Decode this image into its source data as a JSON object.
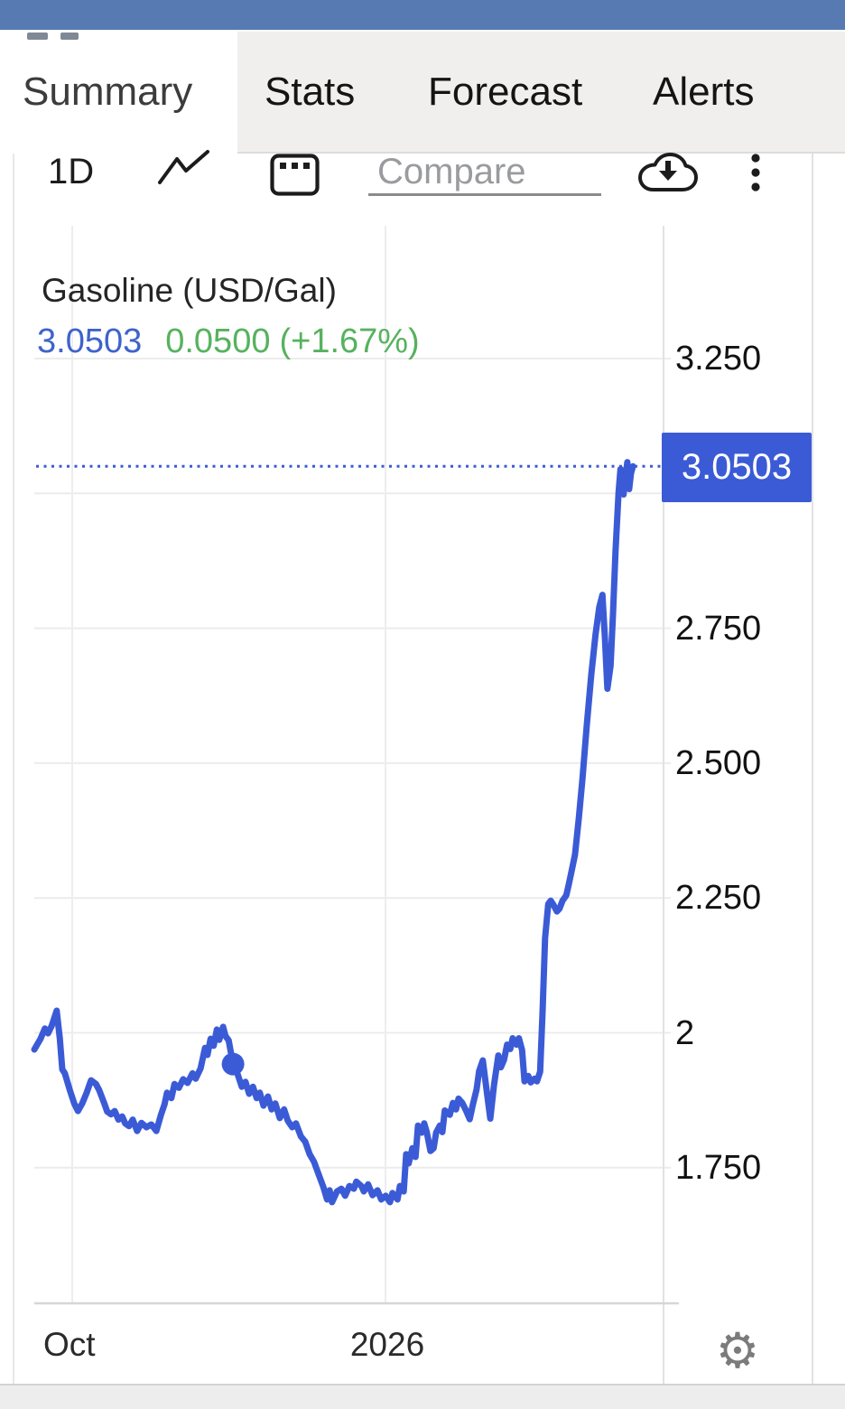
{
  "tabs": {
    "summary": "Summary",
    "stats": "Stats",
    "forecast": "Forecast",
    "alerts": "Alerts"
  },
  "toolbar": {
    "interval": "1D",
    "compare_label": "Compare",
    "icons": [
      "line-chart-icon",
      "chart-type-icon",
      "cloud-download-icon",
      "kebab-menu-icon"
    ]
  },
  "instrument": {
    "title": "Gasoline (USD/Gal)",
    "last": "3.0503",
    "change": "0.0500",
    "change_pct": "(+1.67%)"
  },
  "price_scale": {
    "last_price_label": "3.0503"
  },
  "bottom_bar": {
    "gear_icon": "settings-gear-icon"
  },
  "colors": {
    "statusbar_blue": "#567ab1",
    "line_blue": "#3b5bd6",
    "value_blue": "#3e63cb",
    "change_green": "#57b25e",
    "panel_gray": "#f0efee",
    "grid_gray": "#ececec"
  },
  "chart_data": {
    "type": "line",
    "title": "Gasoline (USD/Gal)",
    "unit": "USD/Gal",
    "last_value": 3.0503,
    "change": 0.05,
    "change_pct": 1.67,
    "ylim": [
      1.5,
      3.4
    ],
    "grid": true,
    "legend_position": "none",
    "y_ticks": [
      "3.250",
      "2.750",
      "2.500",
      "2.250",
      "2",
      "1.750"
    ],
    "y_tick_values": [
      3.25,
      2.75,
      2.5,
      2.25,
      2.0,
      1.75
    ],
    "grid_values": [
      3.25,
      3.0,
      2.75,
      2.5,
      2.25,
      2.0,
      1.75
    ],
    "x_ticks": [
      "Oct",
      "2026"
    ],
    "marker": {
      "t": 0.319,
      "v": 1.942
    },
    "series": [
      {
        "name": "Gasoline",
        "points": [
          [
            0.0,
            1.969
          ],
          [
            0.01,
            1.989
          ],
          [
            0.017,
            2.008
          ],
          [
            0.022,
            1.999
          ],
          [
            0.028,
            2.013
          ],
          [
            0.036,
            2.041
          ],
          [
            0.041,
            1.989
          ],
          [
            0.045,
            1.932
          ],
          [
            0.049,
            1.925
          ],
          [
            0.057,
            1.894
          ],
          [
            0.064,
            1.869
          ],
          [
            0.07,
            1.855
          ],
          [
            0.077,
            1.869
          ],
          [
            0.084,
            1.889
          ],
          [
            0.091,
            1.912
          ],
          [
            0.099,
            1.905
          ],
          [
            0.104,
            1.894
          ],
          [
            0.112,
            1.87
          ],
          [
            0.117,
            1.854
          ],
          [
            0.123,
            1.849
          ],
          [
            0.129,
            1.855
          ],
          [
            0.135,
            1.839
          ],
          [
            0.141,
            1.845
          ],
          [
            0.146,
            1.832
          ],
          [
            0.152,
            1.827
          ],
          [
            0.158,
            1.839
          ],
          [
            0.165,
            1.818
          ],
          [
            0.172,
            1.833
          ],
          [
            0.18,
            1.825
          ],
          [
            0.188,
            1.83
          ],
          [
            0.196,
            1.818
          ],
          [
            0.203,
            1.847
          ],
          [
            0.209,
            1.867
          ],
          [
            0.213,
            1.889
          ],
          [
            0.22,
            1.879
          ],
          [
            0.225,
            1.905
          ],
          [
            0.232,
            1.898
          ],
          [
            0.239,
            1.914
          ],
          [
            0.246,
            1.907
          ],
          [
            0.254,
            1.925
          ],
          [
            0.259,
            1.915
          ],
          [
            0.267,
            1.934
          ],
          [
            0.274,
            1.972
          ],
          [
            0.278,
            1.959
          ],
          [
            0.283,
            1.989
          ],
          [
            0.288,
            1.976
          ],
          [
            0.293,
            2.006
          ],
          [
            0.297,
            1.987
          ],
          [
            0.303,
            2.011
          ],
          [
            0.307,
            1.994
          ],
          [
            0.312,
            1.986
          ],
          [
            0.319,
            1.942
          ],
          [
            0.326,
            1.925
          ],
          [
            0.333,
            1.9
          ],
          [
            0.339,
            1.909
          ],
          [
            0.345,
            1.887
          ],
          [
            0.351,
            1.9
          ],
          [
            0.357,
            1.879
          ],
          [
            0.362,
            1.889
          ],
          [
            0.368,
            1.865
          ],
          [
            0.375,
            1.882
          ],
          [
            0.381,
            1.858
          ],
          [
            0.387,
            1.869
          ],
          [
            0.394,
            1.842
          ],
          [
            0.401,
            1.858
          ],
          [
            0.407,
            1.837
          ],
          [
            0.414,
            1.825
          ],
          [
            0.42,
            1.832
          ],
          [
            0.428,
            1.808
          ],
          [
            0.435,
            1.798
          ],
          [
            0.442,
            1.775
          ],
          [
            0.449,
            1.761
          ],
          [
            0.457,
            1.736
          ],
          [
            0.464,
            1.714
          ],
          [
            0.47,
            1.691
          ],
          [
            0.474,
            1.708
          ],
          [
            0.478,
            1.686
          ],
          [
            0.486,
            1.706
          ],
          [
            0.493,
            1.711
          ],
          [
            0.499,
            1.698
          ],
          [
            0.506,
            1.716
          ],
          [
            0.513,
            1.711
          ],
          [
            0.517,
            1.724
          ],
          [
            0.525,
            1.716
          ],
          [
            0.529,
            1.706
          ],
          [
            0.536,
            1.719
          ],
          [
            0.543,
            1.699
          ],
          [
            0.551,
            1.708
          ],
          [
            0.557,
            1.691
          ],
          [
            0.564,
            1.698
          ],
          [
            0.571,
            1.686
          ],
          [
            0.575,
            1.703
          ],
          [
            0.583,
            1.691
          ],
          [
            0.587,
            1.716
          ],
          [
            0.593,
            1.706
          ],
          [
            0.597,
            1.775
          ],
          [
            0.601,
            1.758
          ],
          [
            0.607,
            1.786
          ],
          [
            0.612,
            1.77
          ],
          [
            0.616,
            1.828
          ],
          [
            0.622,
            1.815
          ],
          [
            0.626,
            1.832
          ],
          [
            0.63,
            1.816
          ],
          [
            0.636,
            1.781
          ],
          [
            0.641,
            1.786
          ],
          [
            0.645,
            1.815
          ],
          [
            0.651,
            1.828
          ],
          [
            0.655,
            1.816
          ],
          [
            0.659,
            1.856
          ],
          [
            0.667,
            1.848
          ],
          [
            0.672,
            1.87
          ],
          [
            0.677,
            1.858
          ],
          [
            0.681,
            1.878
          ],
          [
            0.687,
            1.87
          ],
          [
            0.693,
            1.856
          ],
          [
            0.699,
            1.84
          ],
          [
            0.704,
            1.867
          ],
          [
            0.71,
            1.895
          ],
          [
            0.714,
            1.929
          ],
          [
            0.72,
            1.949
          ],
          [
            0.726,
            1.895
          ],
          [
            0.732,
            1.841
          ],
          [
            0.738,
            1.903
          ],
          [
            0.745,
            1.958
          ],
          [
            0.749,
            1.936
          ],
          [
            0.754,
            1.95
          ],
          [
            0.759,
            1.978
          ],
          [
            0.764,
            1.97
          ],
          [
            0.768,
            1.99
          ],
          [
            0.774,
            1.978
          ],
          [
            0.778,
            1.99
          ],
          [
            0.783,
            1.968
          ],
          [
            0.787,
            1.91
          ],
          [
            0.793,
            1.92
          ],
          [
            0.797,
            1.908
          ],
          [
            0.803,
            1.915
          ],
          [
            0.807,
            1.91
          ],
          [
            0.812,
            1.928
          ],
          [
            0.816,
            2.039
          ],
          [
            0.82,
            2.176
          ],
          [
            0.825,
            2.239
          ],
          [
            0.829,
            2.245
          ],
          [
            0.833,
            2.238
          ],
          [
            0.839,
            2.225
          ],
          [
            0.843,
            2.23
          ],
          [
            0.848,
            2.245
          ],
          [
            0.854,
            2.255
          ],
          [
            0.858,
            2.275
          ],
          [
            0.862,
            2.297
          ],
          [
            0.868,
            2.33
          ],
          [
            0.874,
            2.397
          ],
          [
            0.88,
            2.471
          ],
          [
            0.887,
            2.571
          ],
          [
            0.894,
            2.663
          ],
          [
            0.901,
            2.739
          ],
          [
            0.907,
            2.789
          ],
          [
            0.912,
            2.812
          ],
          [
            0.916,
            2.734
          ],
          [
            0.92,
            2.638
          ],
          [
            0.925,
            2.68
          ],
          [
            0.929,
            2.776
          ],
          [
            0.933,
            2.893
          ],
          [
            0.938,
            3.002
          ],
          [
            0.941,
            3.045
          ],
          [
            0.943,
            3.023
          ],
          [
            0.946,
            2.998
          ],
          [
            0.949,
            3.032
          ],
          [
            0.952,
            3.058
          ],
          [
            0.955,
            3.008
          ],
          [
            0.958,
            3.038
          ],
          [
            0.961,
            3.0503
          ]
        ]
      }
    ]
  }
}
